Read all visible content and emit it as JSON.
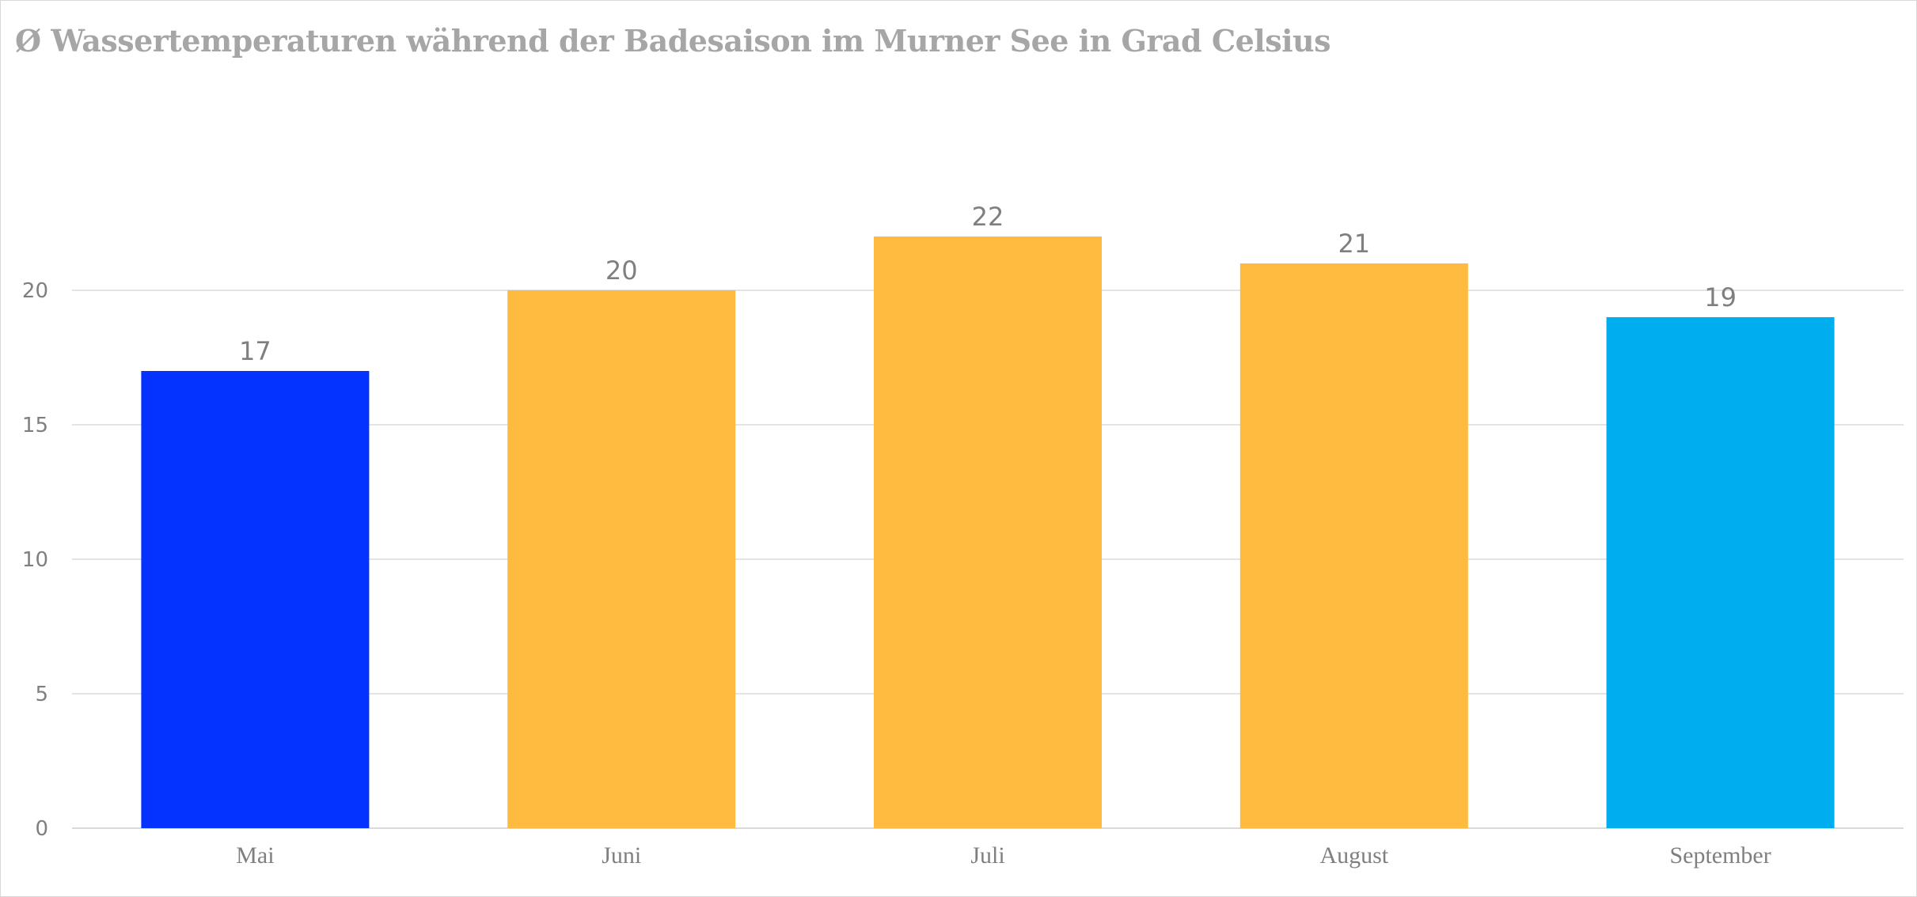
{
  "title": "Ø Wassertemperaturen während der Badesaison im Murner See in Grad Celsius",
  "chart_data": {
    "type": "bar",
    "title": "Ø Wassertemperaturen während der Badesaison im Murner See in Grad Celsius",
    "xlabel": "",
    "ylabel": "",
    "categories": [
      "Mai",
      "Juni",
      "Juli",
      "August",
      "September"
    ],
    "values": [
      17,
      20,
      22,
      21,
      19
    ],
    "bar_colors": [
      "#0432FF",
      "#FFBA40",
      "#FFBA40",
      "#FFBA40",
      "#00AEEF"
    ],
    "ylim": [
      0,
      20
    ],
    "yticks": [
      0,
      5,
      10,
      15,
      20
    ],
    "data_labels": true,
    "grid": true,
    "legend": false
  }
}
